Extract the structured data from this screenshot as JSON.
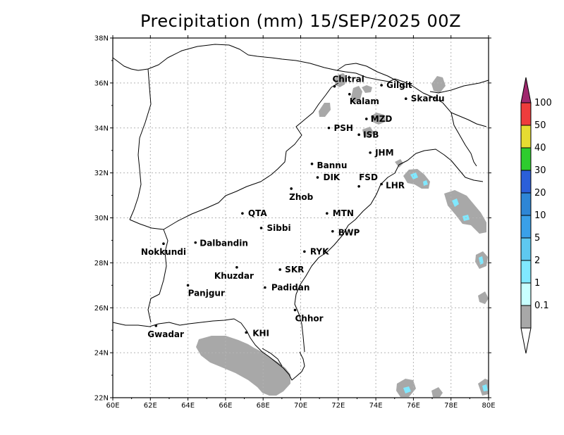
{
  "map": {
    "title": "Precipitation (mm) 15/SEP/2025 00Z",
    "lon_range": [
      60,
      80
    ],
    "lat_range": [
      22,
      38
    ],
    "x_ticks": [
      "60E",
      "62E",
      "64E",
      "66E",
      "68E",
      "70E",
      "72E",
      "74E",
      "76E",
      "78E",
      "80E"
    ],
    "y_ticks": [
      "22N",
      "24N",
      "26N",
      "28N",
      "30N",
      "32N",
      "34N",
      "36N",
      "38N"
    ],
    "grid": true,
    "cities": [
      {
        "name": "Chitral",
        "lon": 71.8,
        "lat": 35.85
      },
      {
        "name": "Kalam",
        "lon": 72.6,
        "lat": 35.5
      },
      {
        "name": "Gilgit",
        "lon": 74.3,
        "lat": 35.9
      },
      {
        "name": "Skardu",
        "lon": 75.6,
        "lat": 35.3
      },
      {
        "name": "MZD",
        "lon": 73.5,
        "lat": 34.4
      },
      {
        "name": "PSH",
        "lon": 71.5,
        "lat": 34.0
      },
      {
        "name": "ISB",
        "lon": 73.1,
        "lat": 33.7
      },
      {
        "name": "JHM",
        "lon": 73.7,
        "lat": 32.9
      },
      {
        "name": "Bannu",
        "lon": 70.6,
        "lat": 32.4
      },
      {
        "name": "DIK",
        "lon": 70.9,
        "lat": 31.8
      },
      {
        "name": "FSD",
        "lon": 73.1,
        "lat": 31.4
      },
      {
        "name": "LHR",
        "lon": 74.3,
        "lat": 31.5
      },
      {
        "name": "Zhob",
        "lon": 69.5,
        "lat": 31.3
      },
      {
        "name": "QTA",
        "lon": 66.9,
        "lat": 30.2
      },
      {
        "name": "MTN",
        "lon": 71.4,
        "lat": 30.2
      },
      {
        "name": "Sibbi",
        "lon": 67.9,
        "lat": 29.55
      },
      {
        "name": "BWP",
        "lon": 71.7,
        "lat": 29.4
      },
      {
        "name": "Nokkundi",
        "lon": 62.7,
        "lat": 28.85
      },
      {
        "name": "Dalbandin",
        "lon": 64.4,
        "lat": 28.9
      },
      {
        "name": "RYK",
        "lon": 70.2,
        "lat": 28.5
      },
      {
        "name": "Khuzdar",
        "lon": 66.6,
        "lat": 27.8
      },
      {
        "name": "SKR",
        "lon": 68.9,
        "lat": 27.7
      },
      {
        "name": "Panjgur",
        "lon": 64.0,
        "lat": 27.0
      },
      {
        "name": "Padidan",
        "lon": 68.1,
        "lat": 26.9
      },
      {
        "name": "Chhor",
        "lon": 69.7,
        "lat": 25.9
      },
      {
        "name": "KHI",
        "lon": 67.1,
        "lat": 24.9
      },
      {
        "name": "Gwadar",
        "lon": 62.3,
        "lat": 25.2
      }
    ]
  },
  "colorbar": {
    "labels": [
      "100",
      "50",
      "40",
      "30",
      "20",
      "10",
      "5",
      "2",
      "1",
      "0.1"
    ],
    "colors": [
      "#ee3c3c",
      "#e6dc32",
      "#2ecc2e",
      "#2b5fd9",
      "#2e86d6",
      "#3aa0e8",
      "#5ec8f0",
      "#80e8ff",
      "#c8ffff",
      "#a8a8a8"
    ],
    "top_color": "#a0286e",
    "bottom_color": "#ffffff"
  }
}
